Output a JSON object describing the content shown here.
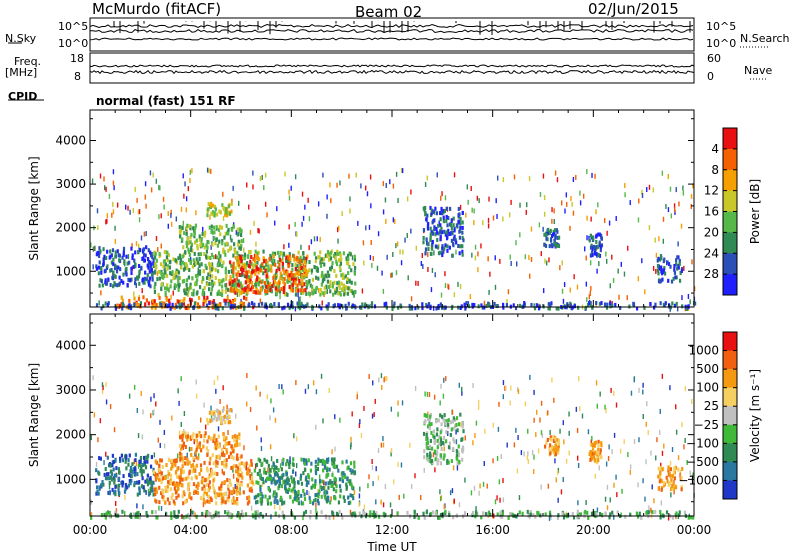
{
  "header": {
    "station": "McMurdo (fitACF)",
    "beam": "Beam 02",
    "date": "02/Jun/2015"
  },
  "top_panel": {
    "left_label_nsky": "N.Sky",
    "left_label_freq": "Freq.",
    "left_label_mhz": "[MHz]",
    "left_label_cpid": "CPID",
    "nsky_ticks": [
      "10^5",
      "10^0"
    ],
    "freq_ticks": [
      "18",
      "8"
    ],
    "right_label_nsearch": "N.Search",
    "right_label_nave": "Nave",
    "nsearch_ticks": [
      "10^5",
      "10^0"
    ],
    "nave_ticks": [
      "60",
      "0"
    ],
    "cpid_text": "normal (fast) 151 RF"
  },
  "chart_data": [
    {
      "type": "heatmap",
      "name": "power",
      "ylabel": "Slant Range [km]",
      "xlabel": "",
      "x_ticks": [
        "00:00",
        "04:00",
        "08:00",
        "12:00",
        "16:00",
        "20:00",
        "00:00"
      ],
      "y_ticks": [
        1000,
        2000,
        3000,
        4000
      ],
      "xlim": [
        0,
        24
      ],
      "ylim": [
        180,
        4700
      ],
      "colorbar": {
        "label": "Power [dB]",
        "ticks": [
          "4",
          "8",
          "12",
          "16",
          "20",
          "24",
          "28"
        ],
        "colors": [
          "#2020ff",
          "#2a50b8",
          "#2f8a54",
          "#55b848",
          "#c8c828",
          "#f5a000",
          "#f56000",
          "#e81010"
        ]
      },
      "regions": [
        {
          "t0": 0.2,
          "t1": 2.5,
          "r0": 700,
          "r1": 1600,
          "level": 1
        },
        {
          "t0": 2.5,
          "t1": 10.5,
          "r0": 500,
          "r1": 1500,
          "level": 3
        },
        {
          "t0": 5.5,
          "t1": 8.6,
          "r0": 550,
          "r1": 1400,
          "level": 6
        },
        {
          "t0": 3.5,
          "t1": 6.0,
          "r0": 1500,
          "r1": 2100,
          "level": 3
        },
        {
          "t0": 4.6,
          "t1": 5.6,
          "r0": 2300,
          "r1": 2600,
          "level": 4
        },
        {
          "t0": 1.0,
          "t1": 6.5,
          "r0": 200,
          "r1": 450,
          "level": 6
        },
        {
          "t0": 0.0,
          "t1": 24.0,
          "r0": 180,
          "r1": 320,
          "level": 1
        },
        {
          "t0": 13.2,
          "t1": 14.8,
          "r0": 1400,
          "r1": 2500,
          "level": 1
        },
        {
          "t0": 18.0,
          "t1": 18.6,
          "r0": 1600,
          "r1": 2000,
          "level": 1
        },
        {
          "t0": 19.8,
          "t1": 20.3,
          "r0": 1400,
          "r1": 1900,
          "level": 1
        },
        {
          "t0": 22.5,
          "t1": 23.5,
          "r0": 800,
          "r1": 1400,
          "level": 1
        }
      ]
    },
    {
      "type": "heatmap",
      "name": "velocity",
      "ylabel": "Slant Range [km]",
      "xlabel": "Time UT",
      "x_ticks": [
        "00:00",
        "04:00",
        "08:00",
        "12:00",
        "16:00",
        "20:00",
        "00:00"
      ],
      "y_ticks": [
        1000,
        2000,
        3000,
        4000
      ],
      "xlim": [
        0,
        24
      ],
      "ylim": [
        180,
        4700
      ],
      "colorbar": {
        "label": "Velocity [m s⁻¹]",
        "ticks": [
          "1000",
          "500",
          "100",
          "25",
          "−25",
          "−100",
          "−500",
          "−1000"
        ],
        "colors": [
          "#2038c8",
          "#2878a0",
          "#2f8a54",
          "#40b838",
          "#c0c0c0",
          "#f5d060",
          "#f59a10",
          "#f06010",
          "#e81010"
        ]
      },
      "regions": [
        {
          "t0": 0.2,
          "t1": 2.5,
          "r0": 700,
          "r1": 1600,
          "level": 1
        },
        {
          "t0": 2.5,
          "t1": 6.5,
          "r0": 500,
          "r1": 1500,
          "level": 6
        },
        {
          "t0": 6.5,
          "t1": 10.5,
          "r0": 500,
          "r1": 1500,
          "level": 2
        },
        {
          "t0": 3.5,
          "t1": 6.0,
          "r0": 1500,
          "r1": 2100,
          "level": 6
        },
        {
          "t0": 4.6,
          "t1": 5.6,
          "r0": 2300,
          "r1": 2600,
          "level": 5
        },
        {
          "t0": 0.0,
          "t1": 24.0,
          "r0": 180,
          "r1": 320,
          "level": 3
        },
        {
          "t0": 13.2,
          "t1": 14.8,
          "r0": 1400,
          "r1": 2500,
          "level": 3
        },
        {
          "t0": 18.0,
          "t1": 18.6,
          "r0": 1600,
          "r1": 2000,
          "level": 6
        },
        {
          "t0": 19.8,
          "t1": 20.3,
          "r0": 1400,
          "r1": 1900,
          "level": 6
        },
        {
          "t0": 22.5,
          "t1": 23.5,
          "r0": 800,
          "r1": 1400,
          "level": 6
        }
      ]
    }
  ]
}
